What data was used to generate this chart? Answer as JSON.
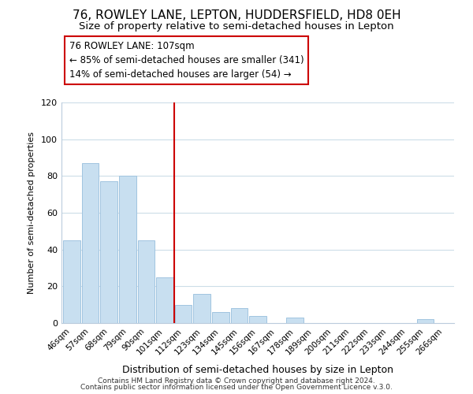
{
  "title": "76, ROWLEY LANE, LEPTON, HUDDERSFIELD, HD8 0EH",
  "subtitle": "Size of property relative to semi-detached houses in Lepton",
  "xlabel": "Distribution of semi-detached houses by size in Lepton",
  "ylabel": "Number of semi-detached properties",
  "bar_labels": [
    "46sqm",
    "57sqm",
    "68sqm",
    "79sqm",
    "90sqm",
    "101sqm",
    "112sqm",
    "123sqm",
    "134sqm",
    "145sqm",
    "156sqm",
    "167sqm",
    "178sqm",
    "189sqm",
    "200sqm",
    "211sqm",
    "222sqm",
    "233sqm",
    "244sqm",
    "255sqm",
    "266sqm"
  ],
  "bar_values": [
    45,
    87,
    77,
    80,
    45,
    25,
    10,
    16,
    6,
    8,
    4,
    0,
    3,
    0,
    0,
    0,
    0,
    0,
    0,
    2,
    0
  ],
  "bar_color": "#c8dff0",
  "bar_edge_color": "#a0c4e0",
  "vline_x": 5.5,
  "vline_color": "#cc0000",
  "annotation_title": "76 ROWLEY LANE: 107sqm",
  "annotation_line1": "← 85% of semi-detached houses are smaller (341)",
  "annotation_line2": "14% of semi-detached houses are larger (54) →",
  "annotation_box_edge": "#cc0000",
  "ylim": [
    0,
    120
  ],
  "yticks": [
    0,
    20,
    40,
    60,
    80,
    100,
    120
  ],
  "footer1": "Contains HM Land Registry data © Crown copyright and database right 2024.",
  "footer2": "Contains public sector information licensed under the Open Government Licence v.3.0.",
  "bg_color": "#ffffff",
  "grid_color": "#ccdde8",
  "title_fontsize": 11,
  "subtitle_fontsize": 9.5
}
